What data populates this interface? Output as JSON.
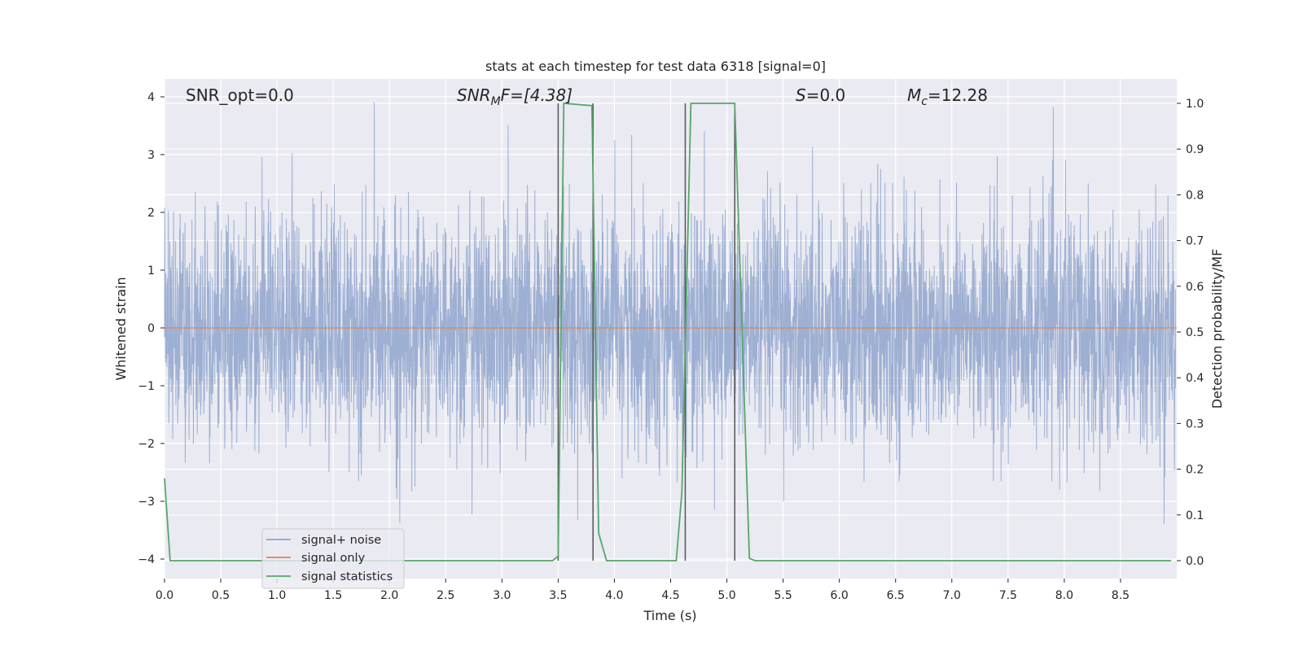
{
  "chart_data": {
    "type": "line",
    "title": "stats at each timestep for test data 6318 [signal=0]",
    "xlabel": "Time (s)",
    "ylabel_left": "Whitened strain",
    "ylabel_right": "Detection probability/MF",
    "xlim": [
      0.0,
      9.0
    ],
    "ylim_left": [
      -4.4,
      4.3
    ],
    "ylim_right": [
      -0.05,
      1.05
    ],
    "x_ticks": [
      "0.0",
      "0.5",
      "1.0",
      "1.5",
      "2.0",
      "2.5",
      "3.0",
      "3.5",
      "4.0",
      "4.5",
      "5.0",
      "5.5",
      "6.0",
      "6.5",
      "7.0",
      "7.5",
      "8.0",
      "8.5"
    ],
    "y_ticks_left": [
      "4",
      "3",
      "2",
      "1",
      "0",
      "−1",
      "−2",
      "−3",
      "−4"
    ],
    "y_ticks_right": [
      "1.0",
      "0.9",
      "0.8",
      "0.7",
      "0.6",
      "0.5",
      "0.4",
      "0.3",
      "0.2",
      "0.1",
      "0.0"
    ],
    "grid": true,
    "legend_position": "lower-left",
    "annotations": {
      "snr_opt": "SNR_opt=0.0",
      "snr_mf_main": "SNR",
      "snr_mf_sub": "M",
      "snr_mf_rest": "F=[4.38]",
      "s_italic": "S",
      "s_rest": "=0.0",
      "mc_main": "M",
      "mc_sub": "c",
      "mc_rest": "=12.28"
    },
    "series": [
      {
        "name": "signal+ noise",
        "color": "#8fa4cd",
        "note_values": "whitened noise, approx. Gaussian, dense band roughly -2 to 2.5 with spikes to about -3.4 and 3.9",
        "noise_range": [
          -3.4,
          3.9
        ]
      },
      {
        "name": "signal only",
        "color": "#dd8452",
        "x": [
          0.0,
          9.0
        ],
        "y": [
          0.0,
          0.0
        ]
      },
      {
        "name": "signal statistics",
        "color": "#55a868",
        "axis": "right",
        "x": [
          0.0,
          0.05,
          0.1,
          3.45,
          3.5,
          3.55,
          3.8,
          3.86,
          3.93,
          4.55,
          4.6,
          4.68,
          5.07,
          5.2,
          5.25,
          8.95
        ],
        "y": [
          0.18,
          0.0,
          0.0,
          0.0,
          0.01,
          1.0,
          0.995,
          0.06,
          0.0,
          0.0,
          0.15,
          1.0,
          1.0,
          0.005,
          0.0,
          0.0
        ]
      }
    ],
    "vertical_lines_x": [
      3.5,
      3.81,
      4.63,
      5.07
    ]
  }
}
